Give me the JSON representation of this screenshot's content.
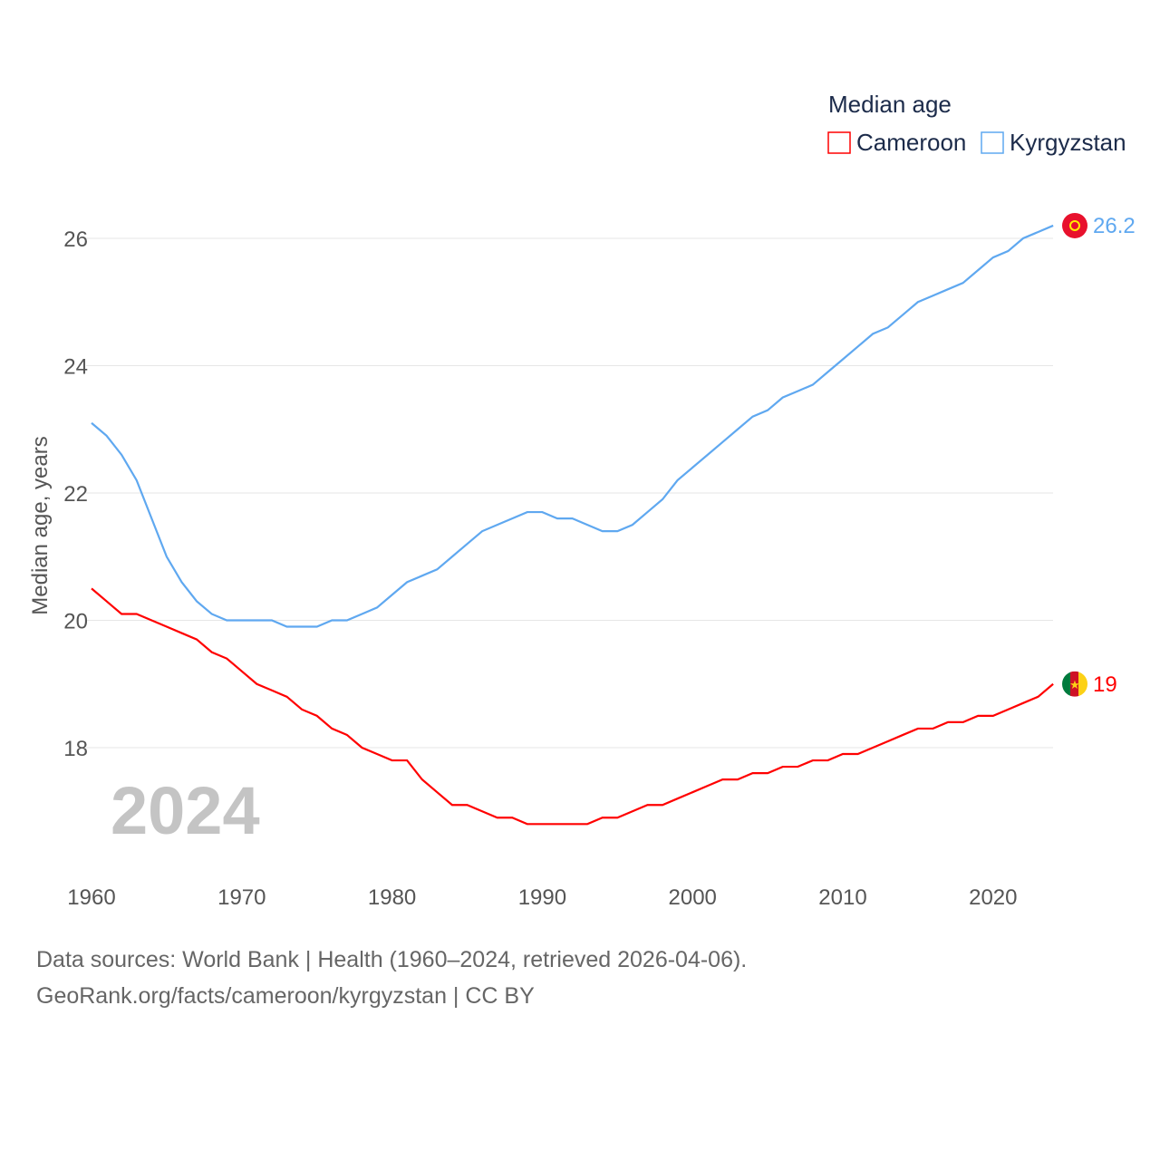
{
  "chart_data": {
    "type": "line",
    "title": "Median age",
    "xlabel": "",
    "ylabel": "Median age, years",
    "xlim": [
      1960,
      2024
    ],
    "ylim": [
      16.2,
      27
    ],
    "yticks": [
      "18",
      "20",
      "22",
      "24",
      "26"
    ],
    "xticks": [
      "1960",
      "1970",
      "1980",
      "1990",
      "2000",
      "2010",
      "2020"
    ],
    "grid": true,
    "legend_position": "top-right",
    "watermark_year": "2024",
    "x": [
      1960,
      1961,
      1962,
      1963,
      1964,
      1965,
      1966,
      1967,
      1968,
      1969,
      1970,
      1971,
      1972,
      1973,
      1974,
      1975,
      1976,
      1977,
      1978,
      1979,
      1980,
      1981,
      1982,
      1983,
      1984,
      1985,
      1986,
      1987,
      1988,
      1989,
      1990,
      1991,
      1992,
      1993,
      1994,
      1995,
      1996,
      1997,
      1998,
      1999,
      2000,
      2001,
      2002,
      2003,
      2004,
      2005,
      2006,
      2007,
      2008,
      2009,
      2010,
      2011,
      2012,
      2013,
      2014,
      2015,
      2016,
      2017,
      2018,
      2019,
      2020,
      2021,
      2022,
      2023,
      2024
    ],
    "series": [
      {
        "name": "Cameroon",
        "color": "#ff0000",
        "end_label": "19",
        "flag": "cameroon-flag",
        "values": [
          20.5,
          20.3,
          20.1,
          20.1,
          20.0,
          19.9,
          19.8,
          19.7,
          19.5,
          19.4,
          19.2,
          19.0,
          18.9,
          18.8,
          18.6,
          18.5,
          18.3,
          18.2,
          18.0,
          17.9,
          17.8,
          17.8,
          17.5,
          17.3,
          17.1,
          17.1,
          17.0,
          16.9,
          16.9,
          16.8,
          16.8,
          16.8,
          16.8,
          16.8,
          16.9,
          16.9,
          17.0,
          17.1,
          17.1,
          17.2,
          17.3,
          17.4,
          17.5,
          17.5,
          17.6,
          17.6,
          17.7,
          17.7,
          17.8,
          17.8,
          17.9,
          17.9,
          18.0,
          18.1,
          18.2,
          18.3,
          18.3,
          18.4,
          18.4,
          18.5,
          18.5,
          18.6,
          18.7,
          18.8,
          19.0
        ]
      },
      {
        "name": "Kyrgyzstan",
        "color": "#5fa8f0",
        "end_label": "26.2",
        "flag": "kyrgyzstan-flag",
        "values": [
          23.1,
          22.9,
          22.6,
          22.2,
          21.6,
          21.0,
          20.6,
          20.3,
          20.1,
          20.0,
          20.0,
          20.0,
          20.0,
          19.9,
          19.9,
          19.9,
          20.0,
          20.0,
          20.1,
          20.2,
          20.4,
          20.6,
          20.7,
          20.8,
          21.0,
          21.2,
          21.4,
          21.5,
          21.6,
          21.7,
          21.7,
          21.6,
          21.6,
          21.5,
          21.4,
          21.4,
          21.5,
          21.7,
          21.9,
          22.2,
          22.4,
          22.6,
          22.8,
          23.0,
          23.2,
          23.3,
          23.5,
          23.6,
          23.7,
          23.9,
          24.1,
          24.3,
          24.5,
          24.6,
          24.8,
          25.0,
          25.1,
          25.2,
          25.3,
          25.5,
          25.7,
          25.8,
          26.0,
          26.1,
          26.2
        ]
      }
    ]
  },
  "footer": {
    "line1": "Data sources: World Bank | Health (1960–2024, retrieved 2026-04-06).",
    "line2": "GeoRank.org/facts/cameroon/kyrgyzstan | CC BY"
  }
}
